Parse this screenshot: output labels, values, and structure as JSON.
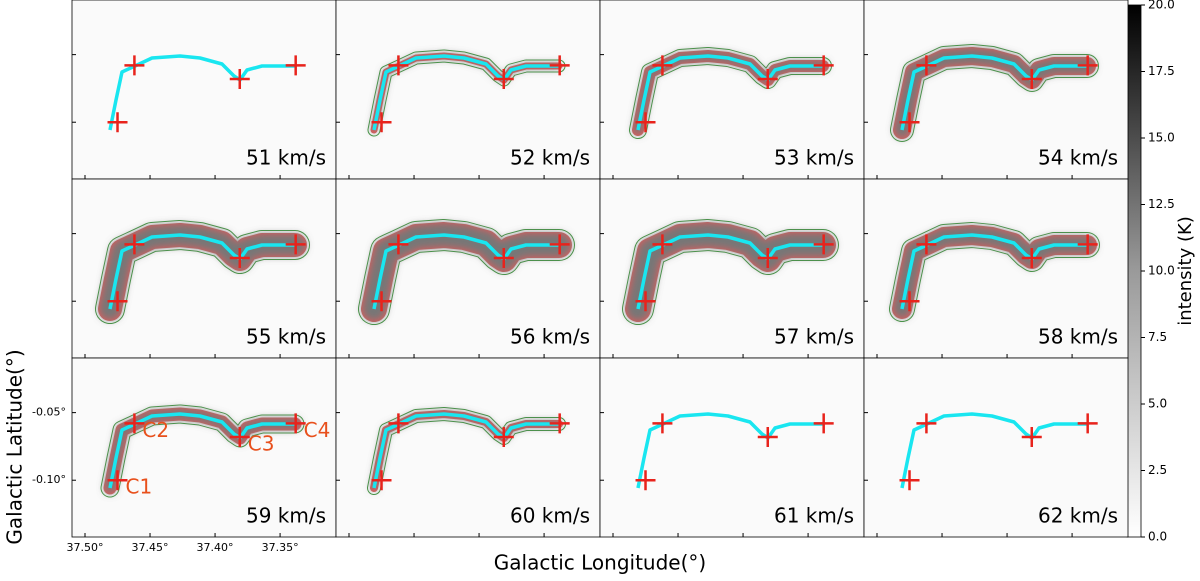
{
  "chart_data": {
    "type": "channel-map",
    "panels": [
      "51 km/s",
      "52 km/s",
      "53 km/s",
      "54 km/s",
      "55 km/s",
      "56 km/s",
      "57 km/s",
      "58 km/s",
      "59 km/s",
      "60 km/s",
      "61 km/s",
      "62 km/s"
    ],
    "x_label": "Galactic Longitude(°)",
    "y_label": "Galactic Latitude(°)",
    "xlim": [
      37.51,
      37.307
    ],
    "ylim": [
      -0.142,
      -0.0096
    ],
    "xticks": [
      {
        "value": 37.5,
        "label": "37.50°"
      },
      {
        "value": 37.45,
        "label": "37.45°"
      },
      {
        "value": 37.4,
        "label": "37.40°"
      },
      {
        "value": 37.35,
        "label": "37.35°"
      }
    ],
    "yticks": [
      {
        "value": -0.05,
        "label": "-0.05°"
      },
      {
        "value": -0.1,
        "label": "-0.10°"
      }
    ],
    "clumps": [
      {
        "label": "C1",
        "l": 37.475,
        "b": -0.1
      },
      {
        "label": "C2",
        "l": 37.462,
        "b": -0.058
      },
      {
        "label": "C3",
        "l": 37.381,
        "b": -0.068
      },
      {
        "label": "C4",
        "l": 37.338,
        "b": -0.058
      }
    ],
    "colorbar": {
      "label": "intensity (K)",
      "lim": [
        0,
        20
      ],
      "ticks": [
        {
          "value": 0,
          "label": "0.0"
        },
        2.5,
        {
          "value": 5,
          "label": "5.0"
        },
        7.5,
        {
          "value": 10,
          "label": "10.0"
        },
        12.5,
        {
          "value": 15,
          "label": "15.0"
        },
        17.5,
        {
          "value": 20,
          "label": "20.0"
        }
      ]
    }
  }
}
